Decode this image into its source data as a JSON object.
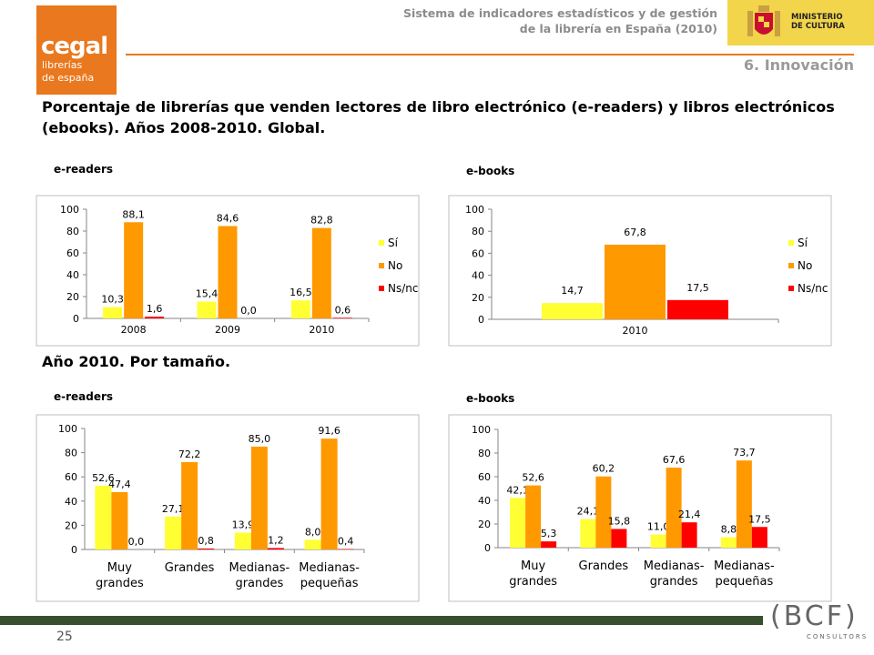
{
  "logo": {
    "line1": "cegal",
    "line2": "librerías",
    "line3": "de españa"
  },
  "header": {
    "line1": "Sistema de indicadores estadísticos y de gestión",
    "line2": "de la librería en España (2010)"
  },
  "ministry": {
    "line1": "MINISTERIO",
    "line2": "DE CULTURA"
  },
  "section": "6. Innovación",
  "title": "Porcentaje de librerías que venden lectores de libro electrónico (e-readers) y libros electrónicos (ebooks). Años 2008-2010. Global.",
  "subtitle": "Año 2010. Por tamaño.",
  "labels": {
    "c1": "e-readers",
    "c2": "e-books",
    "c3": "e-readers",
    "c4": "e-books"
  },
  "page_number": "25",
  "bcf": {
    "main": "(BCF)",
    "sub": "CONSULTORS"
  },
  "colors": {
    "si": "#ffff33",
    "no": "#ff9900",
    "nsnc": "#ff0000",
    "orange": "#e9781e"
  },
  "chart_data": [
    {
      "type": "bar",
      "categories": [
        "2008",
        "2009",
        "2010"
      ],
      "ylim": [
        0,
        100
      ],
      "yticks": [
        "0",
        "20",
        "40",
        "60",
        "80",
        "100"
      ],
      "legend": "right",
      "series": [
        {
          "name": "Sí",
          "values": [
            10.3,
            15.4,
            16.5
          ],
          "labels": [
            "10,3",
            "15,4",
            "16,5"
          ]
        },
        {
          "name": "No",
          "values": [
            88.1,
            84.6,
            82.8
          ],
          "labels": [
            "88,1",
            "84,6",
            "82,8"
          ]
        },
        {
          "name": "Ns/nc",
          "values": [
            1.6,
            0.0,
            0.6
          ],
          "labels": [
            "1,6",
            "0,0",
            "0,6"
          ]
        }
      ]
    },
    {
      "type": "bar",
      "categories": [
        "2010"
      ],
      "ylim": [
        0,
        100
      ],
      "yticks": [
        "0",
        "20",
        "40",
        "60",
        "80",
        "100"
      ],
      "legend": "right",
      "series": [
        {
          "name": "Sí",
          "values": [
            14.7
          ],
          "labels": [
            "14,7"
          ]
        },
        {
          "name": "No",
          "values": [
            67.8
          ],
          "labels": [
            "67,8"
          ]
        },
        {
          "name": "Ns/nc",
          "values": [
            17.5
          ],
          "labels": [
            "17,5"
          ]
        }
      ]
    },
    {
      "type": "bar",
      "categories": [
        [
          "Muy",
          "grandes"
        ],
        [
          "Grandes"
        ],
        [
          "Medianas-",
          "grandes"
        ],
        [
          "Medianas-",
          "pequeñas"
        ]
      ],
      "ylim": [
        0,
        100
      ],
      "yticks": [
        "0",
        "20",
        "40",
        "60",
        "80",
        "100"
      ],
      "series": [
        {
          "values": [
            52.6,
            27.1,
            13.9,
            8.0
          ],
          "labels": [
            "52,6",
            "27,1",
            "13,9",
            "8,0"
          ]
        },
        {
          "values": [
            47.4,
            72.2,
            85.0,
            91.6
          ],
          "labels": [
            "47,4",
            "72,2",
            "85,0",
            "91,6"
          ]
        },
        {
          "values": [
            0.0,
            0.8,
            1.2,
            0.4
          ],
          "labels": [
            "0,0",
            "0,8",
            "1,2",
            "0,4"
          ]
        }
      ]
    },
    {
      "type": "bar",
      "categories": [
        [
          "Muy",
          "grandes"
        ],
        [
          "Grandes"
        ],
        [
          "Medianas-",
          "grandes"
        ],
        [
          "Medianas-",
          "pequeñas"
        ]
      ],
      "ylim": [
        0,
        100
      ],
      "yticks": [
        "0",
        "20",
        "40",
        "60",
        "80",
        "100"
      ],
      "series": [
        {
          "values": [
            42.1,
            24.1,
            11.0,
            8.8
          ],
          "labels": [
            "42,1",
            "24,1",
            "11,0",
            "8,8"
          ]
        },
        {
          "values": [
            52.6,
            60.2,
            67.6,
            73.7
          ],
          "labels": [
            "52,6",
            "60,2",
            "67,6",
            "73,7"
          ]
        },
        {
          "values": [
            5.3,
            15.8,
            21.4,
            17.5
          ],
          "labels": [
            "5,3",
            "15,8",
            "21,4",
            "17,5"
          ]
        }
      ]
    }
  ]
}
